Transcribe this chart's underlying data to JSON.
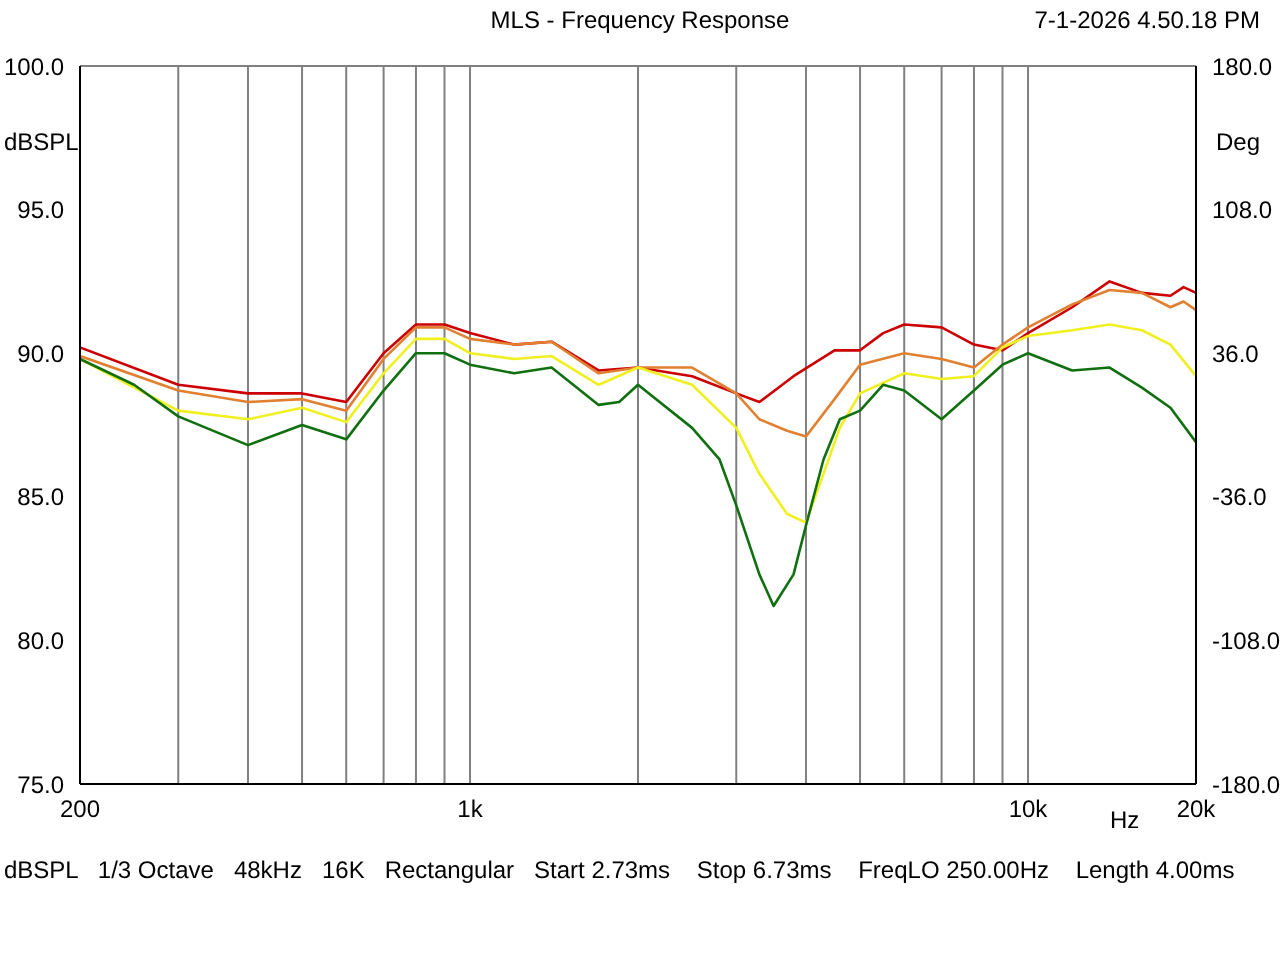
{
  "chart_data": {
    "type": "line",
    "title": "MLS - Frequency Response",
    "xlabel": "Hz",
    "ylabel": "dBSPL",
    "y2label": "Deg",
    "annotations": [
      "7-1-2026 4.50.18 PM",
      "dBSPL   1/3 Octave   48kHz   16K   Rectangular   Start 2.73ms    Stop 6.73ms    FreqLO 250.00Hz    Length 4.00ms"
    ],
    "log": "x",
    "grid": true,
    "legend": false,
    "marker": "none",
    "line_style": "solid",
    "xlim": [
      200,
      20000
    ],
    "xticks": [
      {
        "value": 200,
        "label": "200"
      },
      {
        "value": 300,
        "label": null
      },
      {
        "value": 400,
        "label": null
      },
      {
        "value": 500,
        "label": null
      },
      {
        "value": 600,
        "label": null
      },
      {
        "value": 700,
        "label": null
      },
      {
        "value": 800,
        "label": null
      },
      {
        "value": 900,
        "label": null
      },
      {
        "value": 1000,
        "label": "1k"
      },
      {
        "value": 2000,
        "label": null
      },
      {
        "value": 3000,
        "label": null
      },
      {
        "value": 4000,
        "label": null
      },
      {
        "value": 5000,
        "label": null
      },
      {
        "value": 6000,
        "label": null
      },
      {
        "value": 7000,
        "label": null
      },
      {
        "value": 8000,
        "label": null
      },
      {
        "value": 9000,
        "label": null
      },
      {
        "value": 10000,
        "label": "10k"
      },
      {
        "value": 20000,
        "label": "20k"
      }
    ],
    "ylim": [
      75,
      100
    ],
    "yticks": [
      {
        "value": 75,
        "label": "75.0"
      },
      {
        "value": 80,
        "label": "80.0"
      },
      {
        "value": 85,
        "label": "85.0"
      },
      {
        "value": 90,
        "label": "90.0"
      },
      {
        "value": 95,
        "label": "95.0"
      },
      {
        "value": 100,
        "label": "100.0"
      }
    ],
    "y2lim": [
      -180,
      180
    ],
    "y2ticks": [
      {
        "value": -180,
        "label": "-180.0"
      },
      {
        "value": -108,
        "label": "-108.0"
      },
      {
        "value": -36,
        "label": "-36.0"
      },
      {
        "value": 36,
        "label": "36.0"
      },
      {
        "value": 108,
        "label": "108.0"
      },
      {
        "value": 180,
        "label": "180.0"
      }
    ],
    "series": [
      {
        "color": "#cc0000",
        "x": [
          200,
          300,
          400,
          500,
          600,
          700,
          800,
          900,
          1000,
          1200,
          1400,
          1700,
          2000,
          2500,
          3000,
          3300,
          3800,
          4500,
          5000,
          5500,
          6000,
          7000,
          8000,
          9000,
          10000,
          12000,
          14000,
          16000,
          18000,
          19000,
          20000
        ],
        "values": [
          90.2,
          88.9,
          88.6,
          88.6,
          88.3,
          90.0,
          91.0,
          91.0,
          90.7,
          90.3,
          90.4,
          89.4,
          89.5,
          89.2,
          88.6,
          88.3,
          89.2,
          90.1,
          90.1,
          90.7,
          91.0,
          90.9,
          90.3,
          90.1,
          90.7,
          91.6,
          92.5,
          92.1,
          92.0,
          92.3,
          92.1
        ]
      },
      {
        "color": "#e08030",
        "x": [
          200,
          300,
          400,
          500,
          600,
          700,
          800,
          900,
          1000,
          1200,
          1400,
          1700,
          2000,
          2500,
          3000,
          3300,
          3700,
          4000,
          4500,
          5000,
          6000,
          7000,
          8000,
          9000,
          10000,
          12000,
          14000,
          16000,
          18000,
          19000,
          20000
        ],
        "values": [
          89.9,
          88.7,
          88.3,
          88.4,
          88.0,
          89.8,
          90.9,
          90.9,
          90.5,
          90.3,
          90.4,
          89.3,
          89.5,
          89.5,
          88.6,
          87.7,
          87.3,
          87.1,
          88.4,
          89.6,
          90.0,
          89.8,
          89.5,
          90.3,
          90.9,
          91.7,
          92.2,
          92.1,
          91.6,
          91.8,
          91.5
        ]
      },
      {
        "color": "#f0f020",
        "x": [
          200,
          300,
          400,
          500,
          600,
          700,
          800,
          900,
          1000,
          1200,
          1400,
          1700,
          2000,
          2500,
          3000,
          3300,
          3700,
          4000,
          4300,
          4600,
          5000,
          6000,
          7000,
          8000,
          9000,
          10000,
          12000,
          14000,
          16000,
          18000,
          20000
        ],
        "values": [
          89.8,
          88.0,
          87.7,
          88.1,
          87.6,
          89.3,
          90.5,
          90.5,
          90.0,
          89.8,
          89.9,
          88.9,
          89.5,
          88.9,
          87.4,
          85.8,
          84.4,
          84.1,
          85.8,
          87.4,
          88.6,
          89.3,
          89.1,
          89.2,
          90.2,
          90.6,
          90.8,
          91.0,
          90.8,
          90.3,
          89.2
        ]
      },
      {
        "color": "#107010",
        "x": [
          200,
          250,
          300,
          400,
          500,
          600,
          700,
          800,
          900,
          1000,
          1200,
          1400,
          1700,
          1850,
          2000,
          2500,
          2800,
          3000,
          3300,
          3500,
          3800,
          4000,
          4300,
          4600,
          5000,
          5500,
          6000,
          7000,
          8000,
          9000,
          10000,
          12000,
          14000,
          16000,
          18000,
          20000
        ],
        "values": [
          89.8,
          88.9,
          87.8,
          86.8,
          87.5,
          87.0,
          88.7,
          90.0,
          90.0,
          89.6,
          89.3,
          89.5,
          88.2,
          88.3,
          88.9,
          87.4,
          86.3,
          84.7,
          82.3,
          81.2,
          82.3,
          84.0,
          86.3,
          87.7,
          88.0,
          88.9,
          88.7,
          87.7,
          88.7,
          89.6,
          90.0,
          89.4,
          89.5,
          88.8,
          88.1,
          86.9
        ]
      }
    ]
  }
}
